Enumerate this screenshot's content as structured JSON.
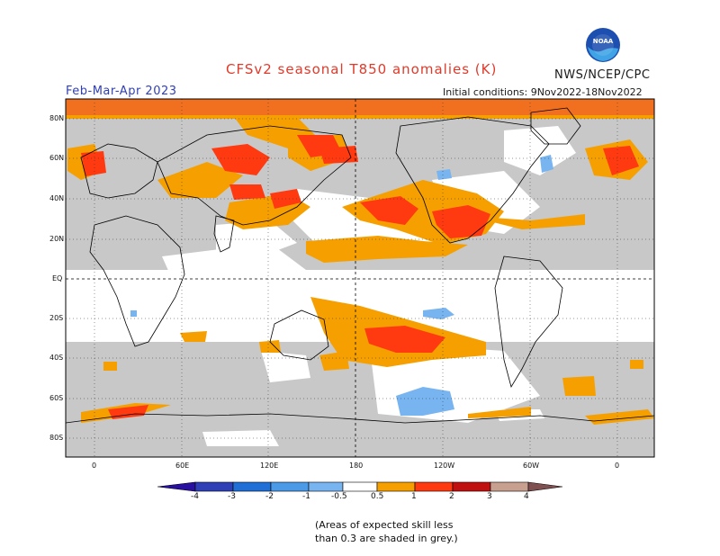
{
  "header": {
    "title": "CFSv2 seasonal T850 anomalies (K)",
    "period": "Feb-Mar-Apr 2023",
    "org": "NWS/NCEP/CPC",
    "initial_conditions": "Initial conditions: 9Nov2022-18Nov2022",
    "logo_text": "NOAA"
  },
  "map": {
    "lat_labels": [
      "80N",
      "60N",
      "40N",
      "20N",
      "EQ",
      "20S",
      "40S",
      "60S",
      "80S"
    ],
    "lon_labels": [
      "0",
      "60E",
      "120E",
      "180",
      "120W",
      "60W",
      "0"
    ]
  },
  "colorbar": {
    "labels": [
      "-4",
      "-3",
      "-2",
      "-1",
      "-0.5",
      "0.5",
      "1",
      "2",
      "3",
      "4"
    ],
    "colors": [
      "#2a10a0",
      "#2f3fb6",
      "#1f6fd6",
      "#4a9ae8",
      "#78b4f0",
      "#ffffff",
      "#f5a000",
      "#f07020",
      "#ff3a10",
      "#c01010",
      "#901010",
      "#c8a090",
      "#805050"
    ]
  },
  "note": {
    "line1": "(Areas of expected skill less",
    "line2": "than 0.3 are shaded in grey.)"
  }
}
